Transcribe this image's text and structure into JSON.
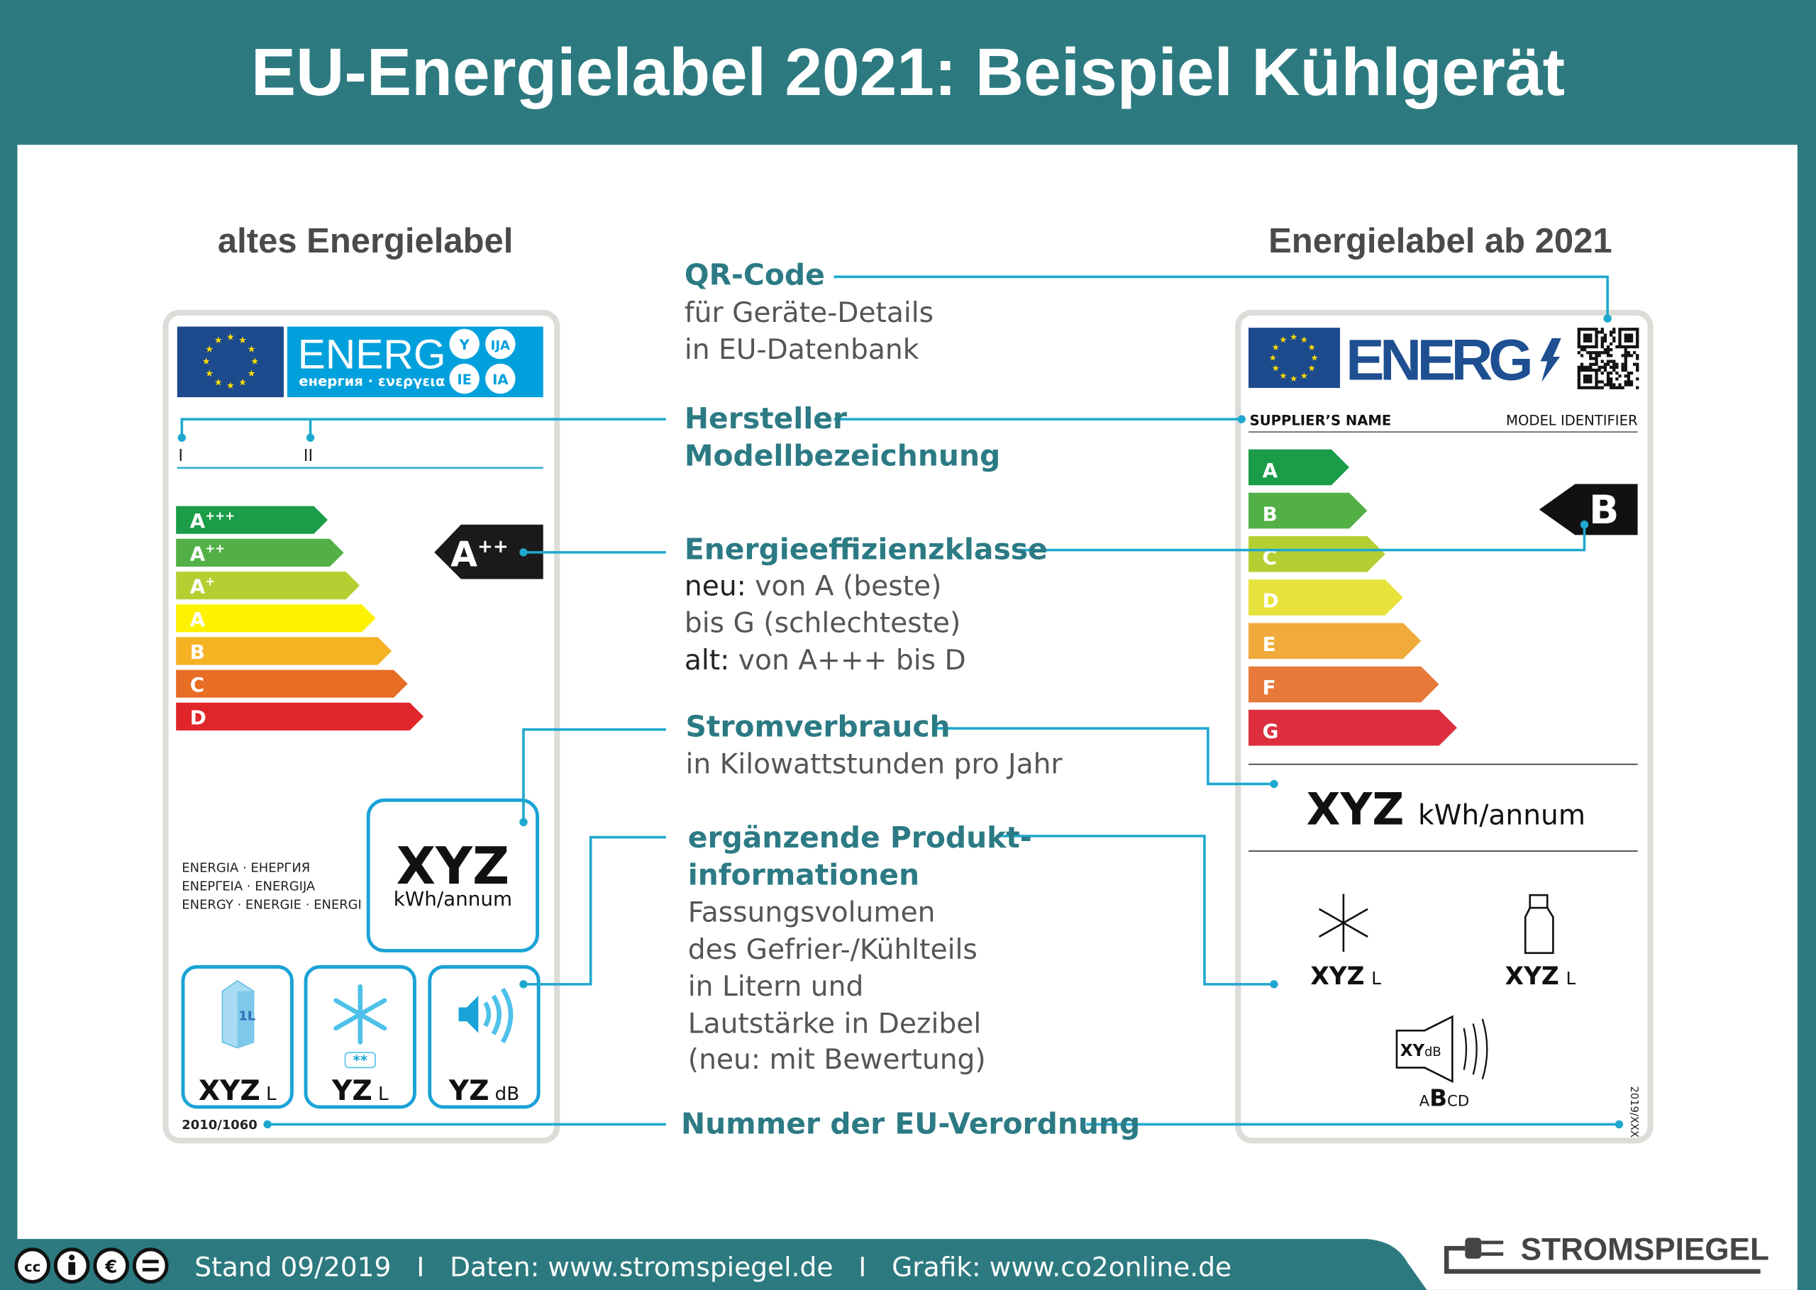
{
  "header": {
    "title": "EU-Energielabel 2021: Beispiel Kühlgerät"
  },
  "colors": {
    "teal": "#2c7a80",
    "accent_line": "#1fa8cf",
    "eu_blue": "#1d4a8c",
    "old_label_blue": "#00a0dc",
    "new_energ_blue": "#1d4f91"
  },
  "old_label": {
    "heading": "altes Energielabel",
    "energ": "ENERG",
    "energ_sub": "енергия · ενεργεια",
    "lang_circles": [
      "Y",
      "IJA",
      "IE",
      "IA"
    ],
    "field_markers": [
      "I",
      "II"
    ],
    "classes": [
      {
        "label": "A+++",
        "color": "#1a9c48"
      },
      {
        "label": "A++",
        "color": "#52b047"
      },
      {
        "label": "A+",
        "color": "#b5cf33"
      },
      {
        "label": "A",
        "color": "#fff200"
      },
      {
        "label": "B",
        "color": "#f5b223"
      },
      {
        "label": "C",
        "color": "#e76d25"
      },
      {
        "label": "D",
        "color": "#e0252b"
      }
    ],
    "rating": {
      "base": "A",
      "sup": "++"
    },
    "energy_words": [
      "ENERGIA · ЕНЕРГИЯ",
      "ΕΝΕΡΓΕΙΑ · ENERGIJA",
      "ENERGY · ENERGIE · ENERGI"
    ],
    "consumption": {
      "value": "XYZ",
      "unit": "kWh/annum"
    },
    "boxes": [
      {
        "icon": "milk-carton-icon",
        "value": "XYZ",
        "unit": "L",
        "icon_text": "1L"
      },
      {
        "icon": "snowflake-icon",
        "value": "YZ",
        "unit": "L",
        "icon_text": "**"
      },
      {
        "icon": "speaker-icon",
        "value": "YZ",
        "unit": "dB"
      }
    ],
    "regulation": "2010/1060"
  },
  "annotations": {
    "qr": {
      "title": "QR-Code",
      "lines": [
        "für Geräte-Details",
        "in EU-Datenbank"
      ]
    },
    "supplier": {
      "title_lines": [
        "Hersteller",
        "Modellbezeichnung"
      ]
    },
    "efficiency": {
      "title": "Energieeffizienzklasse",
      "new_bold": "neu:",
      "new_text": " von A (beste)",
      "new_line2": "bis G (schlechteste)",
      "old_bold": "alt:",
      "old_text": " von A+++ bis D"
    },
    "consumption": {
      "title": "Stromverbrauch",
      "lines": [
        "in Kilowattstunden pro Jahr"
      ]
    },
    "extra": {
      "title_lines": [
        "ergänzende Produkt-",
        "informationen"
      ],
      "lines": [
        "Fassungsvolumen",
        "des Gefrier-/Kühlteils",
        "in Litern und",
        "Lautstärke in Dezibel",
        "(neu: mit Bewertung)"
      ]
    },
    "regulation": {
      "title": "Nummer der EU-Verordnung"
    }
  },
  "new_label": {
    "heading": "Energielabel ab 2021",
    "energ": "ENERG",
    "supplier": "SUPPLIER’S NAME",
    "model": "MODEL IDENTIFIER",
    "classes": [
      {
        "label": "A",
        "color": "#1a9c48"
      },
      {
        "label": "B",
        "color": "#52b047"
      },
      {
        "label": "C",
        "color": "#b5cf33"
      },
      {
        "label": "D",
        "color": "#e8e33c"
      },
      {
        "label": "E",
        "color": "#f0ab3c"
      },
      {
        "label": "F",
        "color": "#e7793a"
      },
      {
        "label": "G",
        "color": "#dc2e3d"
      }
    ],
    "rating": "B",
    "consumption": {
      "value": "XYZ",
      "unit": "kWh/annum"
    },
    "freezer": {
      "value": "XYZ",
      "unit": "L"
    },
    "fridge": {
      "value": "XYZ",
      "unit": "L"
    },
    "noise": {
      "value": "XY",
      "unit": "dB",
      "scale": [
        "A",
        "B",
        "CD"
      ]
    },
    "regulation": "2019/XXX"
  },
  "footer": {
    "license_icons": [
      "cc",
      "by",
      "nc",
      "nd"
    ],
    "text": "Stand 09/2019   I   Daten: www.stromspiegel.de   I   Grafik: www.co2online.de",
    "logo": "STROMSPIEGEL"
  }
}
